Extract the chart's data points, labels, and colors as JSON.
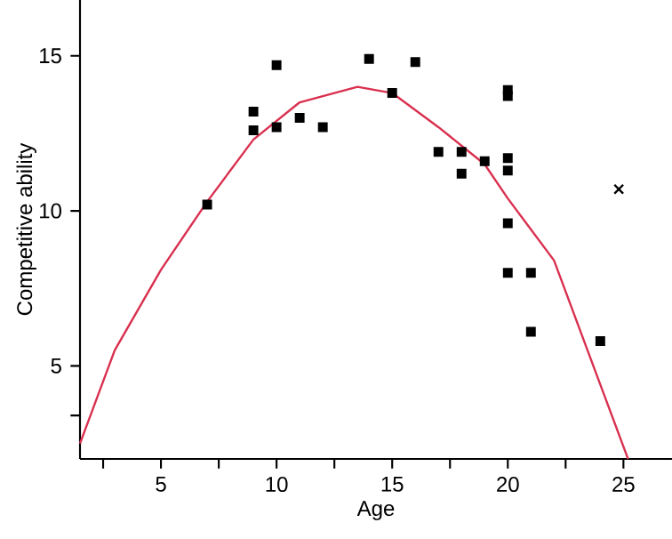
{
  "chart_data": {
    "type": "scatter",
    "xlabel": "Age",
    "ylabel": "Competitive ability",
    "xlim": [
      1.5,
      27.1
    ],
    "ylim": [
      2.0,
      16.8
    ],
    "xticks": [
      {
        "value": 2.5,
        "label": null
      },
      5,
      {
        "value": 7.5,
        "label": null
      },
      10,
      {
        "value": 12.5,
        "label": null
      },
      15,
      {
        "value": 17.5,
        "label": null
      },
      20,
      {
        "value": 22.5,
        "label": null
      },
      25
    ],
    "yticks": [
      {
        "value": 3.4,
        "label": null
      },
      5,
      10,
      15
    ],
    "series": [
      {
        "marker": "square",
        "color": "#000000",
        "x": [
          7,
          9,
          9,
          10,
          10,
          11,
          12,
          14,
          15,
          16,
          17,
          18,
          18,
          19,
          20,
          20,
          20,
          20,
          20,
          20,
          21,
          21,
          24
        ],
        "values": [
          10.2,
          13.2,
          12.6,
          14.7,
          12.7,
          13.0,
          12.7,
          14.9,
          13.8,
          14.8,
          11.9,
          11.9,
          11.2,
          11.6,
          13.9,
          13.7,
          11.7,
          11.3,
          9.6,
          8.0,
          8.0,
          6.1,
          5.8
        ]
      },
      {
        "type": "scatter",
        "marker": "cross",
        "color": "#000000",
        "x": [
          24.8
        ],
        "values": [
          10.7
        ]
      },
      {
        "type": "line",
        "marker": "none",
        "color": "#d9304f",
        "x": [
          1.5,
          3,
          5,
          7,
          9,
          11,
          13.5,
          15,
          17,
          19,
          20,
          22,
          24,
          25.2
        ],
        "values": [
          2.5,
          5.5,
          8.1,
          10.3,
          12.3,
          13.5,
          14.0,
          13.8,
          12.7,
          11.5,
          10.4,
          8.4,
          4.4,
          2.0
        ]
      }
    ]
  }
}
